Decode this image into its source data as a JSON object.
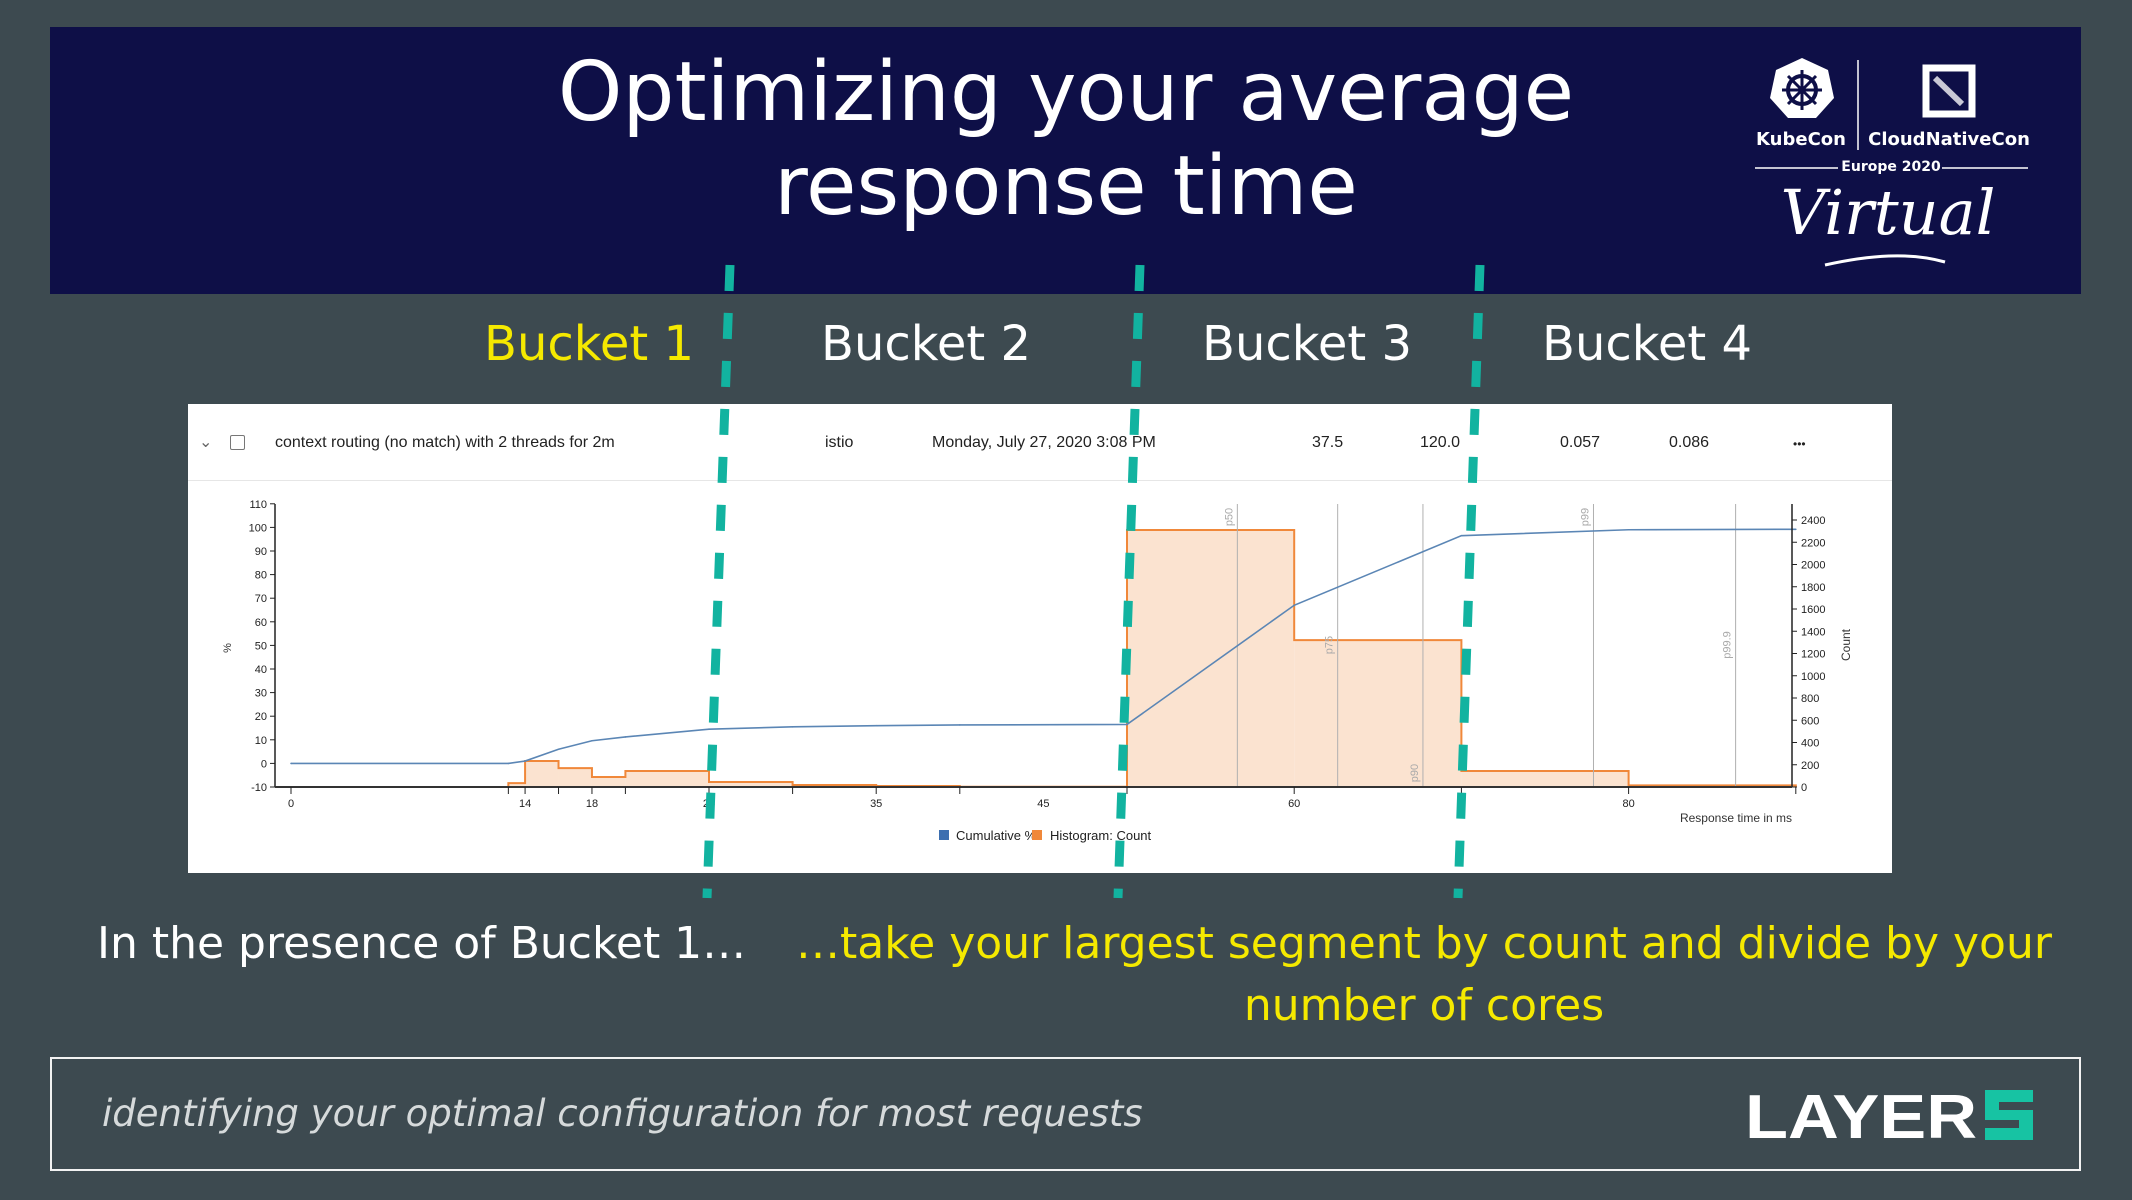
{
  "slide": {
    "title_line1": "Optimizing your average",
    "title_line2": "response time",
    "buckets": [
      "Bucket 1",
      "Bucket 2",
      "Bucket 3",
      "Bucket 4"
    ],
    "left_caption": "In the presence of Bucket 1…",
    "right_caption_line1": "…take your largest segment by count and divide by your",
    "right_caption_line2": "number of cores",
    "footer_text": "identifying your optimal configuration for most requests",
    "colors": {
      "background": "#3d4a50",
      "banner": "#0e0f47",
      "highlight": "#f5e900",
      "divider_dashes": "#12b3a0"
    }
  },
  "event_logo": {
    "kubecon": "KubeCon",
    "cloudnativecon": "CloudNativeCon",
    "edition": "Europe 2020",
    "tagline": "Virtual"
  },
  "brand_logo": {
    "text": "LAYER5"
  },
  "result_row": {
    "name": "context routing (no match) with 2 threads for 2m",
    "mesh": "istio",
    "date": "Monday, July 27, 2020 3:08 PM",
    "value1": "37.5",
    "value2": "120.0",
    "value3": "0.057",
    "value4": "0.086",
    "more_label": "•••"
  },
  "chart_data": {
    "type": "bar+line",
    "xlabel": "Response time in ms",
    "ylabel_left": "%",
    "ylabel_right": "Count",
    "xlim": [
      0,
      90
    ],
    "ylim_left": [
      -10,
      110
    ],
    "ylim_right": [
      0,
      2400
    ],
    "x_tick_labels": [
      "0",
      "14",
      "18",
      "25",
      "35",
      "45",
      "60",
      "80"
    ],
    "y_left_ticks": [
      "110",
      "100",
      "90",
      "80",
      "70",
      "60",
      "50",
      "40",
      "30",
      "20",
      "10",
      "0",
      "-10"
    ],
    "y_right_ticks": [
      "2400",
      "2200",
      "2000",
      "1800",
      "1600",
      "1400",
      "1200",
      "1000",
      "800",
      "600",
      "400",
      "200",
      "0"
    ],
    "legend": [
      "Cumulative %",
      "Histogram: Count"
    ],
    "legend_placement": "bottom",
    "colors": {
      "cumulative": "#3d6fb0",
      "histogram": "#f0883a",
      "histogram_fill": "#fbe3d0"
    },
    "histogram": {
      "name": "Histogram: Count",
      "bin_edges": [
        13,
        14,
        16,
        18,
        20,
        25,
        30,
        35,
        40,
        50,
        60,
        70,
        80,
        90
      ],
      "counts": [
        35,
        234,
        170,
        90,
        144,
        45,
        18,
        9,
        2,
        2310,
        1320,
        144,
        15
      ]
    },
    "cumulative": {
      "name": "Cumulative %",
      "x": [
        0,
        13,
        14,
        16,
        18,
        20,
        25,
        30,
        35,
        40,
        50,
        60,
        70,
        80,
        90
      ],
      "y": [
        0,
        0,
        1,
        6,
        9.6,
        11.2,
        14.5,
        15.5,
        16,
        16.3,
        16.5,
        67,
        96.5,
        99,
        99.2
      ]
    },
    "percentiles": [
      {
        "label": "p50",
        "x": 56.6
      },
      {
        "label": "p75",
        "x": 62.6
      },
      {
        "label": "p90",
        "x": 67.7
      },
      {
        "label": "p99",
        "x": 77.9
      },
      {
        "label": "p99.9",
        "x": 86.4
      }
    ]
  }
}
